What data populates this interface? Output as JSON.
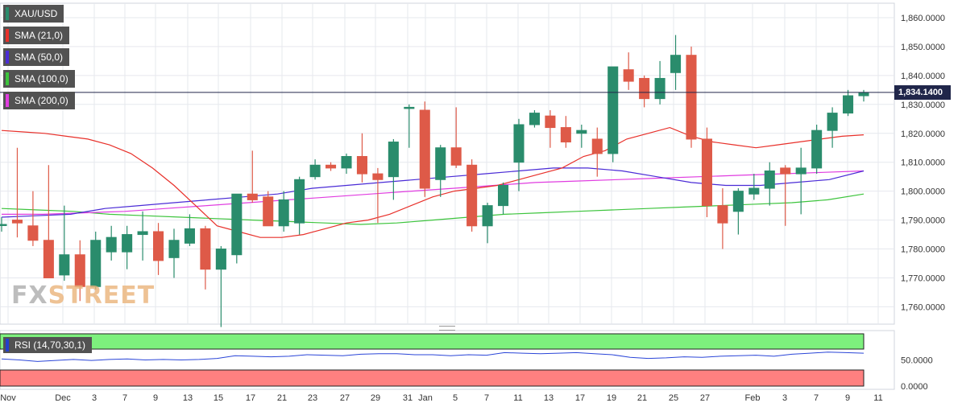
{
  "legend": {
    "symbol": "XAU/USD",
    "sma21": "SMA (21,0)",
    "sma50": "SMA (50,0)",
    "sma100": "SMA (100,0)",
    "sma200": "SMA (200,0)"
  },
  "rsi_label": "RSI (14,70,30,1)",
  "last_price_label": "1,834.1400",
  "watermark": {
    "fx": "FX",
    "street": "STREET"
  },
  "colors": {
    "up": "#2a8c6c",
    "down": "#de5a48",
    "sma21": "#e8302a",
    "sma50": "#4a2bd6",
    "sma100": "#3cc43c",
    "sma200": "#e03ce0",
    "rsi": "#2a45d8",
    "rsi_overbought": "#7df07d",
    "rsi_oversold": "#ff8080",
    "grid": "#e6e8ee",
    "price_line": "#20264a"
  },
  "chart_data": {
    "type": "candlestick",
    "symbol": "XAU/USD",
    "ylim": [
      1754,
      1865
    ],
    "yticks": [
      1760,
      1770,
      1780,
      1790,
      1800,
      1810,
      1820,
      1830,
      1840,
      1850,
      1860
    ],
    "ytick_labels": [
      "1,760.0000",
      "1,770.0000",
      "1,780.0000",
      "1,790.0000",
      "1,800.0000",
      "1,810.0000",
      "1,820.0000",
      "1,830.0000",
      "1,840.0000",
      "1,850.0000",
      "1,860.0000"
    ],
    "last_price": 1834.14,
    "xtick_labels": [
      "Nov",
      "Dec",
      "3",
      "7",
      "9",
      "13",
      "15",
      "17",
      "21",
      "23",
      "27",
      "29",
      "31",
      "Jan",
      "5",
      "7",
      "11",
      "13",
      "17",
      "19",
      "21",
      "25",
      "27",
      "Feb",
      "3",
      "7",
      "9",
      "11"
    ],
    "candles": [
      {
        "o": 1788.5,
        "h": 1791,
        "l": 1786,
        "c": 1788.5
      },
      {
        "o": 1790,
        "h": 1815,
        "l": 1784,
        "c": 1789
      },
      {
        "o": 1788,
        "h": 1800,
        "l": 1781,
        "c": 1783
      },
      {
        "o": 1783,
        "h": 1809,
        "l": 1770,
        "c": 1770
      },
      {
        "o": 1771,
        "h": 1795,
        "l": 1769,
        "c": 1778
      },
      {
        "o": 1778,
        "h": 1783,
        "l": 1762,
        "c": 1767
      },
      {
        "o": 1767,
        "h": 1786,
        "l": 1766,
        "c": 1783
      },
      {
        "o": 1779,
        "h": 1788,
        "l": 1776,
        "c": 1784
      },
      {
        "o": 1779,
        "h": 1788,
        "l": 1773,
        "c": 1785
      },
      {
        "o": 1785,
        "h": 1793,
        "l": 1776,
        "c": 1786
      },
      {
        "o": 1786,
        "h": 1789,
        "l": 1771,
        "c": 1776
      },
      {
        "o": 1777,
        "h": 1787,
        "l": 1770,
        "c": 1783
      },
      {
        "o": 1782,
        "h": 1792,
        "l": 1781,
        "c": 1787
      },
      {
        "o": 1787,
        "h": 1788,
        "l": 1766,
        "c": 1773
      },
      {
        "o": 1773,
        "h": 1781,
        "l": 1753,
        "c": 1780
      },
      {
        "o": 1778,
        "h": 1799,
        "l": 1775,
        "c": 1799
      },
      {
        "o": 1799,
        "h": 1814,
        "l": 1796,
        "c": 1797
      },
      {
        "o": 1798,
        "h": 1800,
        "l": 1788,
        "c": 1788
      },
      {
        "o": 1788,
        "h": 1800,
        "l": 1786,
        "c": 1797
      },
      {
        "o": 1789,
        "h": 1805,
        "l": 1785,
        "c": 1804
      },
      {
        "o": 1805,
        "h": 1811,
        "l": 1804,
        "c": 1809
      },
      {
        "o": 1809,
        "h": 1810,
        "l": 1807,
        "c": 1808
      },
      {
        "o": 1808,
        "h": 1813,
        "l": 1806,
        "c": 1812
      },
      {
        "o": 1812,
        "h": 1820,
        "l": 1803,
        "c": 1806
      },
      {
        "o": 1806,
        "h": 1808,
        "l": 1789,
        "c": 1804
      },
      {
        "o": 1805,
        "h": 1818,
        "l": 1797,
        "c": 1817
      },
      {
        "o": 1829,
        "h": 1830,
        "l": 1815,
        "c": 1829
      },
      {
        "o": 1828,
        "h": 1831,
        "l": 1798,
        "c": 1801
      },
      {
        "o": 1804,
        "h": 1816,
        "l": 1798,
        "c": 1815
      },
      {
        "o": 1815,
        "h": 1829,
        "l": 1808,
        "c": 1809
      },
      {
        "o": 1809,
        "h": 1811,
        "l": 1786,
        "c": 1788
      },
      {
        "o": 1788,
        "h": 1796,
        "l": 1782,
        "c": 1795
      },
      {
        "o": 1795,
        "h": 1803,
        "l": 1792,
        "c": 1802
      },
      {
        "o": 1810,
        "h": 1825,
        "l": 1800,
        "c": 1823
      },
      {
        "o": 1823,
        "h": 1828,
        "l": 1822,
        "c": 1827
      },
      {
        "o": 1826,
        "h": 1828,
        "l": 1815,
        "c": 1822
      },
      {
        "o": 1822,
        "h": 1826,
        "l": 1815,
        "c": 1817
      },
      {
        "o": 1820,
        "h": 1823,
        "l": 1815,
        "c": 1821
      },
      {
        "o": 1818,
        "h": 1822,
        "l": 1805,
        "c": 1813
      },
      {
        "o": 1813,
        "h": 1843,
        "l": 1810,
        "c": 1843
      },
      {
        "o": 1842,
        "h": 1848,
        "l": 1835,
        "c": 1838
      },
      {
        "o": 1839,
        "h": 1840,
        "l": 1829,
        "c": 1832
      },
      {
        "o": 1832,
        "h": 1845,
        "l": 1830,
        "c": 1839
      },
      {
        "o": 1841,
        "h": 1854,
        "l": 1835,
        "c": 1847
      },
      {
        "o": 1847,
        "h": 1850,
        "l": 1815,
        "c": 1818
      },
      {
        "o": 1818,
        "h": 1822,
        "l": 1791,
        "c": 1795
      },
      {
        "o": 1795,
        "h": 1801,
        "l": 1780,
        "c": 1789
      },
      {
        "o": 1793,
        "h": 1801,
        "l": 1785,
        "c": 1800
      },
      {
        "o": 1799,
        "h": 1806,
        "l": 1797,
        "c": 1801
      },
      {
        "o": 1801,
        "h": 1810,
        "l": 1795,
        "c": 1807
      },
      {
        "o": 1808,
        "h": 1809,
        "l": 1788,
        "c": 1806
      },
      {
        "o": 1806,
        "h": 1815,
        "l": 1792,
        "c": 1808
      },
      {
        "o": 1808,
        "h": 1823,
        "l": 1806,
        "c": 1821
      },
      {
        "o": 1821,
        "h": 1829,
        "l": 1815,
        "c": 1827
      },
      {
        "o": 1827,
        "h": 1835,
        "l": 1826,
        "c": 1833
      },
      {
        "o": 1833,
        "h": 1835,
        "l": 1831,
        "c": 1834
      }
    ],
    "sma21": [
      1821,
      1820.5,
      1820,
      1819,
      1818,
      1816,
      1813,
      1808,
      1802,
      1795,
      1788,
      1786,
      1784,
      1784,
      1785,
      1787,
      1789,
      1790,
      1792,
      1795,
      1798,
      1800,
      1801,
      1802,
      1804,
      1806,
      1808,
      1812,
      1814,
      1818,
      1820,
      1822,
      1819,
      1817,
      1816,
      1815,
      1816,
      1817,
      1818,
      1819,
      1819.5
    ],
    "sma50": [
      1791,
      1791.5,
      1792,
      1794,
      1795,
      1796,
      1797,
      1798,
      1799,
      1801,
      1802,
      1803,
      1804,
      1805,
      1806,
      1807,
      1808,
      1808,
      1807,
      1805,
      1803,
      1802,
      1802,
      1803,
      1804,
      1807
    ],
    "sma100": [
      1794,
      1793.5,
      1793,
      1792,
      1791.5,
      1791,
      1790.5,
      1790,
      1789.5,
      1789,
      1788.5,
      1789,
      1790,
      1791,
      1792,
      1792.5,
      1793,
      1793.5,
      1794,
      1794.5,
      1795,
      1795.5,
      1796,
      1797,
      1799
    ],
    "sma200": [
      1792,
      1792,
      1792.5,
      1793,
      1794,
      1795,
      1796,
      1797,
      1798,
      1799,
      1800,
      1801,
      1802,
      1803,
      1803.5,
      1804,
      1804.5,
      1805,
      1805.5,
      1806,
      1806.5,
      1807
    ],
    "rsi": [
      52,
      50,
      47,
      49,
      51,
      49,
      51,
      52,
      50,
      51,
      50,
      51,
      53,
      58,
      57,
      56,
      57,
      60,
      59,
      58,
      61,
      62,
      62,
      60,
      60,
      58,
      60,
      59,
      64,
      63,
      62,
      63,
      64,
      62,
      60,
      55,
      53,
      54,
      56,
      55,
      57,
      58,
      59,
      57,
      61,
      63,
      65,
      64,
      63
    ],
    "rsi_ylim": [
      0,
      100
    ],
    "rsi_ticks": [
      0,
      50
    ],
    "rsi_tick_labels": [
      "0.0000",
      "50.0000"
    ]
  }
}
